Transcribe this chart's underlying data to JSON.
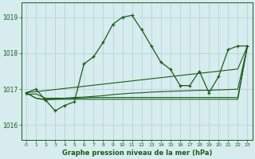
{
  "title": "Graphe pression niveau de la mer (hPa)",
  "bg_color": "#d6ecee",
  "grid_color": "#b0d0d4",
  "line_color": "#1a5c1a",
  "x_ticks": [
    0,
    1,
    2,
    3,
    4,
    5,
    6,
    7,
    8,
    9,
    10,
    11,
    12,
    13,
    14,
    15,
    16,
    17,
    18,
    19,
    20,
    21,
    22,
    23
  ],
  "y_ticks": [
    1016,
    1017,
    1018,
    1019
  ],
  "ylim": [
    1015.6,
    1019.4
  ],
  "xlim": [
    -0.5,
    23.5
  ],
  "series_main": [
    1016.9,
    1017.0,
    1016.7,
    1016.4,
    1016.55,
    1016.65,
    1017.7,
    1017.9,
    1018.3,
    1018.8,
    1019.0,
    1019.05,
    1018.65,
    1018.2,
    1017.75,
    1017.55,
    1017.1,
    1017.1,
    1017.5,
    1016.9,
    1017.35,
    1018.1,
    1018.2,
    1018.2
  ],
  "series_linear1": [
    1016.9,
    1016.93,
    1016.96,
    1016.99,
    1017.02,
    1017.05,
    1017.08,
    1017.11,
    1017.14,
    1017.17,
    1017.2,
    1017.23,
    1017.26,
    1017.29,
    1017.32,
    1017.35,
    1017.38,
    1017.41,
    1017.44,
    1017.47,
    1017.5,
    1017.53,
    1017.56,
    1018.2
  ],
  "series_linear2": [
    1016.85,
    1016.87,
    1016.75,
    1016.75,
    1016.75,
    1016.77,
    1016.78,
    1016.8,
    1016.82,
    1016.85,
    1016.87,
    1016.89,
    1016.9,
    1016.92,
    1016.93,
    1016.94,
    1016.95,
    1016.96,
    1016.97,
    1016.97,
    1016.98,
    1016.99,
    1017.0,
    1018.2
  ],
  "series_flat1": [
    1016.9,
    1016.75,
    1016.7,
    1016.72,
    1016.74,
    1016.75,
    1016.76,
    1016.77,
    1016.77,
    1016.77,
    1016.77,
    1016.77,
    1016.77,
    1016.77,
    1016.77,
    1016.77,
    1016.77,
    1016.77,
    1016.77,
    1016.77,
    1016.77,
    1016.77,
    1016.77,
    1018.2
  ],
  "series_flat2": [
    1016.9,
    1016.75,
    1016.72,
    1016.72,
    1016.72,
    1016.72,
    1016.72,
    1016.72,
    1016.72,
    1016.72,
    1016.72,
    1016.72,
    1016.72,
    1016.72,
    1016.72,
    1016.72,
    1016.72,
    1016.72,
    1016.72,
    1016.72,
    1016.72,
    1016.72,
    1016.72,
    1018.2
  ]
}
